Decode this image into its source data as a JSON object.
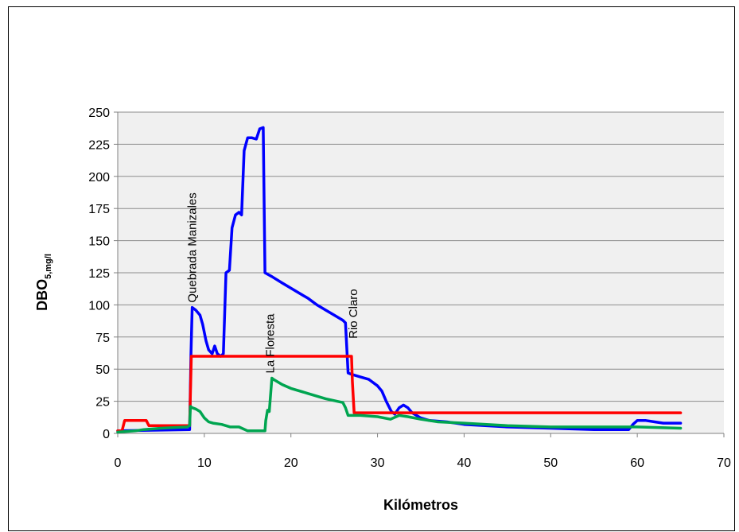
{
  "chart_data": {
    "type": "line",
    "title": "",
    "xlabel": "Kilómetros",
    "ylabel": "DBO",
    "ylabel_sub": "5,mg/l",
    "xlim": [
      0,
      70
    ],
    "ylim": [
      0,
      250
    ],
    "xticks": [
      0,
      10,
      20,
      30,
      40,
      50,
      60,
      70
    ],
    "yticks": [
      0,
      25,
      50,
      75,
      100,
      125,
      150,
      175,
      200,
      225,
      250
    ],
    "grid": true,
    "legend": false,
    "annotations": [
      {
        "text": "Quebrada Manizales",
        "x": 8.6,
        "y": 98
      },
      {
        "text": "La Floresta",
        "x": 17.6,
        "y": 43
      },
      {
        "text": "Rio Claro",
        "x": 27.2,
        "y": 70
      }
    ],
    "series": [
      {
        "color": "#0000ff",
        "x": [
          0,
          8.3,
          8.45,
          8.6,
          9.0,
          9.5,
          9.8,
          10.2,
          10.5,
          10.9,
          11.2,
          11.5,
          11.9,
          12.2,
          12.5,
          12.9,
          13.2,
          13.6,
          14.0,
          14.3,
          14.6,
          15.0,
          15.5,
          16.0,
          16.4,
          16.8,
          17.0,
          17.8,
          19.0,
          20.0,
          21.0,
          22.0,
          23.0,
          24.0,
          25.0,
          26.0,
          26.3,
          26.6,
          27.0,
          28.0,
          29.0,
          30.0,
          30.5,
          31.0,
          31.6,
          32.0,
          32.5,
          33.0,
          33.5,
          34.0,
          35.0,
          36.0,
          38.0,
          40.0,
          45.0,
          50.0,
          55.0,
          59.0,
          59.5,
          60.0,
          61.0,
          62.0,
          63.0,
          65.0
        ],
        "y": [
          2,
          3,
          60,
          98,
          96,
          92,
          85,
          72,
          65,
          62,
          68,
          62,
          60,
          62,
          125,
          127,
          160,
          170,
          172,
          170,
          220,
          230,
          230,
          229,
          237,
          238,
          125,
          122,
          117,
          113,
          109,
          105,
          100,
          96,
          92,
          88,
          86,
          47,
          46,
          44,
          42,
          37,
          33,
          25,
          17,
          15,
          20,
          22,
          20,
          16,
          12,
          10,
          9,
          7,
          5,
          4,
          3,
          3,
          7,
          10,
          10,
          9,
          8,
          8
        ]
      },
      {
        "color": "#ff0000",
        "x": [
          0,
          0.5,
          0.8,
          1.0,
          3.0,
          3.3,
          3.6,
          8.3,
          8.5,
          9.0,
          27.0,
          27.1,
          27.3,
          65.0
        ],
        "y": [
          2,
          2,
          10,
          10,
          10,
          10,
          6,
          6,
          60,
          60,
          60,
          40,
          16,
          16
        ],
        "path": "step"
      },
      {
        "color": "#00a550",
        "x": [
          0,
          2.0,
          3.0,
          5.0,
          8.0,
          8.3,
          8.4,
          8.6,
          9.0,
          9.5,
          10.0,
          10.5,
          11.0,
          12.0,
          13.0,
          14.0,
          15.0,
          16.0,
          17.0,
          17.1,
          17.3,
          17.5,
          17.8,
          18.0,
          19.0,
          20.0,
          22.0,
          24.0,
          26.0,
          26.3,
          26.6,
          28.0,
          30.0,
          31.5,
          32.5,
          33.5,
          35.0,
          37.0,
          40.0,
          45.0,
          50.0,
          55.0,
          60.0,
          65.0
        ],
        "y": [
          1,
          2,
          3,
          4,
          5,
          6,
          21,
          20,
          19,
          17,
          12,
          9,
          8,
          7,
          5,
          5,
          2,
          2,
          2,
          10,
          18,
          17,
          43,
          42,
          38,
          35,
          31,
          27,
          24,
          20,
          14,
          14,
          13,
          11,
          14,
          13,
          11,
          9,
          8,
          6,
          5,
          5,
          5,
          4
        ]
      }
    ]
  }
}
